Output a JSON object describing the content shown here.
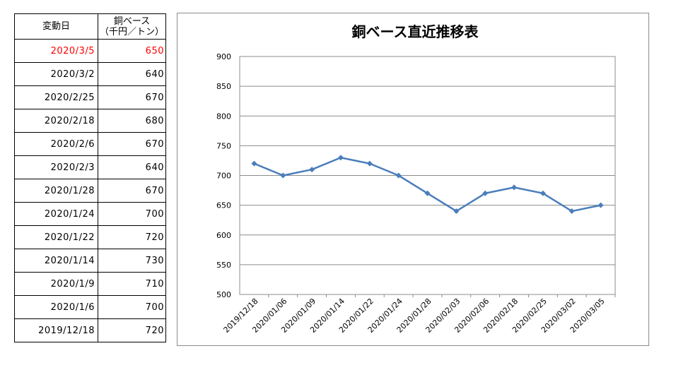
{
  "table": {
    "header_date": "変動日",
    "header_price_line1": "銅ベース",
    "header_price_line2": "（千円／トン）",
    "highlight_color": "#ff0000",
    "rows": [
      {
        "date": "2020/3/5",
        "price": "650",
        "highlight": true
      },
      {
        "date": "2020/3/2",
        "price": "640"
      },
      {
        "date": "2020/2/25",
        "price": "670"
      },
      {
        "date": "2020/2/18",
        "price": "680"
      },
      {
        "date": "2020/2/6",
        "price": "670"
      },
      {
        "date": "2020/2/3",
        "price": "640"
      },
      {
        "date": "2020/1/28",
        "price": "670"
      },
      {
        "date": "2020/1/24",
        "price": "700"
      },
      {
        "date": "2020/1/22",
        "price": "720"
      },
      {
        "date": "2020/1/14",
        "price": "730"
      },
      {
        "date": "2020/1/9",
        "price": "710"
      },
      {
        "date": "2020/1/6",
        "price": "700"
      },
      {
        "date": "2019/12/18",
        "price": "720"
      }
    ]
  },
  "chart_data": {
    "type": "line",
    "title": "銅ベース直近推移表",
    "xlabel": "",
    "ylabel": "",
    "categories": [
      "2019/12/18",
      "2020/01/06",
      "2020/01/09",
      "2020/01/14",
      "2020/01/22",
      "2020/01/24",
      "2020/01/28",
      "2020/02/03",
      "2020/02/06",
      "2020/02/18",
      "2020/02/25",
      "2020/03/02",
      "2020/03/05"
    ],
    "series": [
      {
        "values": [
          720,
          700,
          710,
          730,
          720,
          700,
          670,
          640,
          670,
          680,
          670,
          640,
          650
        ]
      }
    ],
    "ylim": [
      500,
      900
    ],
    "yticks": [
      500,
      550,
      600,
      650,
      700,
      750,
      800,
      850,
      900
    ],
    "grid": true,
    "legend": "none",
    "line_color": "#4a7ebb"
  }
}
